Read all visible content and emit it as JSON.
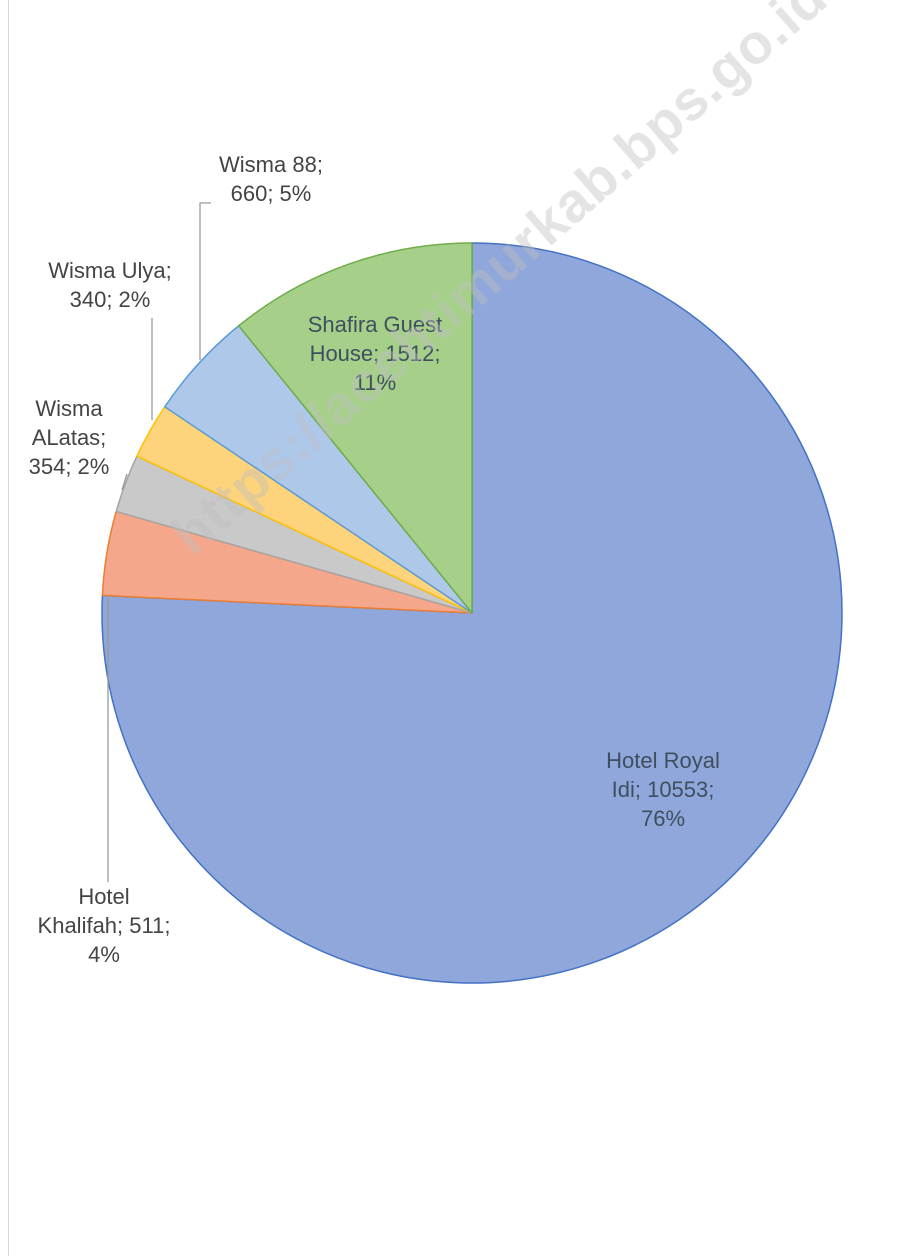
{
  "chart_data": {
    "type": "pie",
    "slices": [
      {
        "name": "Hotel Royal Idi",
        "value": 10553,
        "percent": 76,
        "label": "Hotel Royal\nIdi; 10553;\n76%",
        "color": "#8fa7da"
      },
      {
        "name": "Hotel Khalifah",
        "value": 511,
        "percent": 4,
        "label": "Hotel\nKhalifah; 511;\n4%",
        "color": "#f4a78b"
      },
      {
        "name": "Wisma ALatas",
        "value": 354,
        "percent": 2,
        "label": "Wisma\nALatas;\n354; 2%",
        "color": "#c9c9c9"
      },
      {
        "name": "Wisma Ulya",
        "value": 340,
        "percent": 2,
        "label": "Wisma Ulya;\n340; 2%",
        "color": "#fdd47c"
      },
      {
        "name": "Wisma 88",
        "value": 660,
        "percent": 5,
        "label": "Wisma 88;\n660; 5%",
        "color": "#aec8ea"
      },
      {
        "name": "Shafira Guest House",
        "value": 1512,
        "percent": 11,
        "label": "Shafira Guest\nHouse; 1512;\n11%",
        "color": "#a6d08a"
      }
    ],
    "borders": [
      "#4472c4",
      "#ed7d31",
      "#a5a5a5",
      "#ffc000",
      "#5b9bd5",
      "#70ad47"
    ],
    "start": "12 o'clock",
    "direction": "clockwise",
    "legend": "none"
  },
  "watermark": "https://acehtimurkab.bps.go.id"
}
